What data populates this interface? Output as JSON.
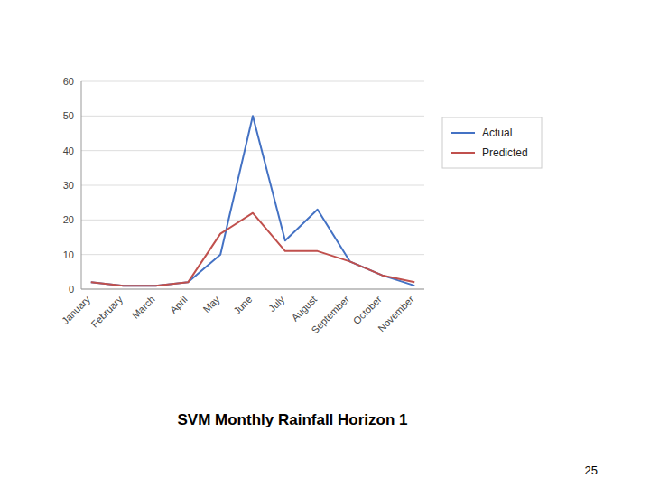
{
  "chart_data": {
    "type": "line",
    "title": "SVM Monthly Rainfall Horizon 1",
    "categories": [
      "January",
      "February",
      "March",
      "April",
      "May",
      "June",
      "July",
      "August",
      "September",
      "October",
      "November"
    ],
    "series": [
      {
        "name": "Actual",
        "color": "#4472C4",
        "values": [
          2,
          1,
          1,
          2,
          10,
          50,
          14,
          23,
          8,
          4,
          1
        ]
      },
      {
        "name": "Predicted",
        "color": "#C0504D",
        "values": [
          2,
          1,
          1,
          2,
          16,
          22,
          11,
          11,
          8,
          4,
          2
        ]
      }
    ],
    "ylim": [
      0,
      60
    ],
    "yticks": [
      0,
      10,
      20,
      30,
      40,
      50,
      60
    ],
    "grid": true,
    "legend": "right",
    "annotations": [
      "25"
    ]
  }
}
